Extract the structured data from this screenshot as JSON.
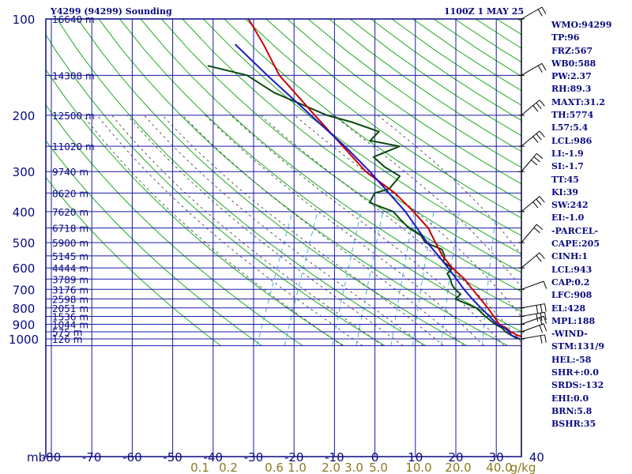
{
  "header": {
    "station": "Y4299 (94299) Sounding",
    "time": "1100Z  1 MAY 25"
  },
  "indices": [
    "WMO:94299",
    "TP:96",
    "FRZ:567",
    "WB0:588",
    "PW:2.37",
    "RH:89.3",
    "MAXT:31.2",
    "TH:5774",
    "L57:5.4",
    "LCL:986",
    "LI:-1.9",
    "SI:-1.7",
    "TT:45",
    "KI:39",
    "SW:242",
    "EI:-1.0",
    "-PARCEL-",
    "CAPE:205",
    "CINH:1",
    "LCL:943",
    "CAP:0.2",
    "LFC:908",
    "EL:428",
    "MPL:188",
    "-WIND-",
    "STM:131/9",
    "HEL:-58",
    "SHR+:0.0",
    "SRDS:-132",
    "EHI:0.0",
    "BRN:5.8",
    "BSHR:35"
  ],
  "colors": {
    "frame": "#0a0a80",
    "grid": "#1a1aa8",
    "dry_adiabat": "#22aa22",
    "moist_adiabat": "#333333",
    "mixing_ratio": "#33aadd",
    "temperature": "#cc0000",
    "dewpoint": "#0a4a0a",
    "parcel": "#1a1ac0",
    "mixing_label": "#8a7a20",
    "wind": "#000000"
  },
  "chart_data": {
    "type": "line",
    "diagram": "skew-T log-P",
    "title": "Y4299 (94299) Sounding",
    "ylabel": "mb",
    "xlabel": "",
    "pressure_ticks": [
      100,
      200,
      300,
      400,
      500,
      600,
      700,
      800,
      900,
      1000
    ],
    "temperature_ticks": [
      -80,
      -70,
      -60,
      -50,
      -40,
      -30,
      -20,
      -10,
      0,
      10,
      20,
      30,
      40
    ],
    "temperature_range": [
      -80,
      45
    ],
    "pressure_range": [
      100,
      1050
    ],
    "height_labels": [
      {
        "p": 100,
        "label": "16640 m"
      },
      {
        "p": 150,
        "label": "14308 m"
      },
      {
        "p": 200,
        "label": "12500 m"
      },
      {
        "p": 250,
        "label": "11020 m"
      },
      {
        "p": 300,
        "label": "9740 m"
      },
      {
        "p": 350,
        "label": "8620 m"
      },
      {
        "p": 400,
        "label": "7620 m"
      },
      {
        "p": 450,
        "label": "6718 m"
      },
      {
        "p": 500,
        "label": "5900 m"
      },
      {
        "p": 550,
        "label": "5145 m"
      },
      {
        "p": 600,
        "label": "4444 m"
      },
      {
        "p": 650,
        "label": "3789 m"
      },
      {
        "p": 700,
        "label": "3176 m"
      },
      {
        "p": 750,
        "label": "2598 m"
      },
      {
        "p": 800,
        "label": "2051 m"
      },
      {
        "p": 850,
        "label": "1536 m"
      },
      {
        "p": 900,
        "label": "1044 m"
      },
      {
        "p": 950,
        "label": "575 m"
      },
      {
        "p": 1000,
        "label": "126 m"
      }
    ],
    "mixing_ratio_labels": [
      "0.1",
      "0.2",
      "0.6",
      "1.0",
      "2.0",
      "3.0",
      "5.0",
      "10.0",
      "20.0",
      "40.0",
      "g/kg"
    ],
    "series": [
      {
        "role": "temperature",
        "points": [
          [
            1000,
            25.5
          ],
          [
            975,
            22
          ],
          [
            950,
            19.8
          ],
          [
            925,
            18.2
          ],
          [
            900,
            16
          ],
          [
            850,
            13.6
          ],
          [
            800,
            11
          ],
          [
            750,
            8
          ],
          [
            700,
            4.8
          ],
          [
            650,
            1.5
          ],
          [
            600,
            -3
          ],
          [
            550,
            -7
          ],
          [
            500,
            -10.5
          ],
          [
            450,
            -14.2
          ],
          [
            400,
            -20
          ],
          [
            350,
            -27
          ],
          [
            300,
            -37
          ],
          [
            250,
            -46
          ],
          [
            200,
            -57
          ],
          [
            150,
            -71
          ],
          [
            120,
            -79
          ],
          [
            100,
            -86
          ]
        ]
      },
      {
        "role": "dewpoint",
        "points": [
          [
            1000,
            22.5
          ],
          [
            975,
            20.5
          ],
          [
            950,
            18.5
          ],
          [
            925,
            17.2
          ],
          [
            900,
            15
          ],
          [
            850,
            11.5
          ],
          [
            800,
            8.2
          ],
          [
            750,
            1.8
          ],
          [
            725,
            2.5
          ],
          [
            700,
            0.5
          ],
          [
            675,
            -1
          ],
          [
            650,
            -2
          ],
          [
            625,
            -3.5
          ],
          [
            600,
            -3
          ],
          [
            575,
            -6
          ],
          [
            550,
            -6.5
          ],
          [
            525,
            -8
          ],
          [
            500,
            -13
          ],
          [
            475,
            -15
          ],
          [
            450,
            -19
          ],
          [
            425,
            -22
          ],
          [
            400,
            -25
          ],
          [
            375,
            -32
          ],
          [
            350,
            -32
          ],
          [
            340,
            -29
          ],
          [
            310,
            -28
          ],
          [
            290,
            -33
          ],
          [
            270,
            -37
          ],
          [
            250,
            -32
          ],
          [
            240,
            -40
          ],
          [
            225,
            -39
          ],
          [
            210,
            -47
          ],
          [
            200,
            -54
          ],
          [
            170,
            -70
          ],
          [
            150,
            -79
          ],
          [
            140,
            -90
          ]
        ]
      },
      {
        "role": "parcel",
        "points": [
          [
            1000,
            23
          ],
          [
            975,
            20.5
          ],
          [
            950,
            19.5
          ],
          [
            925,
            17.8
          ],
          [
            900,
            15.5
          ],
          [
            850,
            12.5
          ],
          [
            800,
            9.3
          ],
          [
            750,
            6
          ],
          [
            700,
            2.7
          ],
          [
            650,
            -0.5
          ],
          [
            600,
            -4
          ],
          [
            550,
            -8
          ],
          [
            500,
            -12.5
          ],
          [
            450,
            -17
          ],
          [
            400,
            -22
          ],
          [
            350,
            -28.5
          ],
          [
            300,
            -36
          ],
          [
            250,
            -45.5
          ],
          [
            200,
            -58
          ],
          [
            150,
            -74
          ],
          [
            120,
            -86
          ]
        ]
      }
    ],
    "wind_profile": [
      {
        "p": 1000,
        "dir": 260,
        "spd": 15
      },
      {
        "p": 950,
        "dir": 250,
        "spd": 15
      },
      {
        "p": 900,
        "dir": 250,
        "spd": 20
      },
      {
        "p": 850,
        "dir": 260,
        "spd": 25
      },
      {
        "p": 800,
        "dir": 260,
        "spd": 25
      },
      {
        "p": 700,
        "dir": 250,
        "spd": 10
      },
      {
        "p": 600,
        "dir": 230,
        "spd": 15
      },
      {
        "p": 500,
        "dir": 220,
        "spd": 20
      },
      {
        "p": 400,
        "dir": 230,
        "spd": 25
      },
      {
        "p": 300,
        "dir": 220,
        "spd": 25
      },
      {
        "p": 250,
        "dir": 230,
        "spd": 25
      },
      {
        "p": 200,
        "dir": 230,
        "spd": 25
      },
      {
        "p": 150,
        "dir": 240,
        "spd": 20
      },
      {
        "p": 100,
        "dir": 240,
        "spd": 15
      }
    ],
    "grid": true,
    "legend": "none"
  }
}
